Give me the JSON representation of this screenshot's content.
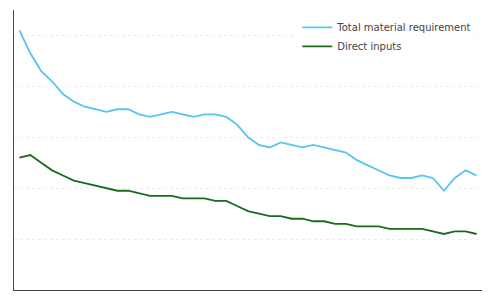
{
  "chart_data": {
    "type": "line",
    "x": [
      1970,
      1971,
      1972,
      1973,
      1974,
      1975,
      1976,
      1977,
      1978,
      1979,
      1980,
      1981,
      1982,
      1983,
      1984,
      1985,
      1986,
      1987,
      1988,
      1989,
      1990,
      1991,
      1992,
      1993,
      1994,
      1995,
      1996,
      1997,
      1998,
      1999,
      2000,
      2001,
      2002,
      2003,
      2004,
      2005,
      2006,
      2007,
      2008,
      2009,
      2010,
      2011,
      2012
    ],
    "series": [
      {
        "name": "Total material requirement",
        "color": "#56C5F0",
        "values": [
          1.02,
          0.93,
          0.86,
          0.82,
          0.77,
          0.74,
          0.72,
          0.71,
          0.7,
          0.71,
          0.71,
          0.69,
          0.68,
          0.69,
          0.7,
          0.69,
          0.68,
          0.69,
          0.69,
          0.68,
          0.65,
          0.6,
          0.57,
          0.56,
          0.58,
          0.57,
          0.56,
          0.57,
          0.56,
          0.55,
          0.54,
          0.51,
          0.49,
          0.47,
          0.45,
          0.44,
          0.44,
          0.45,
          0.44,
          0.39,
          0.44,
          0.47,
          0.45
        ]
      },
      {
        "name": "Direct inputs",
        "color": "#1A6B1A",
        "values": [
          0.52,
          0.53,
          0.5,
          0.47,
          0.45,
          0.43,
          0.42,
          0.41,
          0.4,
          0.39,
          0.39,
          0.38,
          0.37,
          0.37,
          0.37,
          0.36,
          0.36,
          0.36,
          0.35,
          0.35,
          0.33,
          0.31,
          0.3,
          0.29,
          0.29,
          0.28,
          0.28,
          0.27,
          0.27,
          0.26,
          0.26,
          0.25,
          0.25,
          0.25,
          0.24,
          0.24,
          0.24,
          0.24,
          0.23,
          0.22,
          0.23,
          0.23,
          0.22
        ]
      }
    ],
    "xlim": [
      1969.5,
      2012.5
    ],
    "ylim": [
      0.0,
      1.1
    ],
    "yticks": [
      0.2,
      0.4,
      0.6,
      0.8,
      1.0
    ],
    "grid": true,
    "legend": "upper right",
    "tick_labels": false
  }
}
